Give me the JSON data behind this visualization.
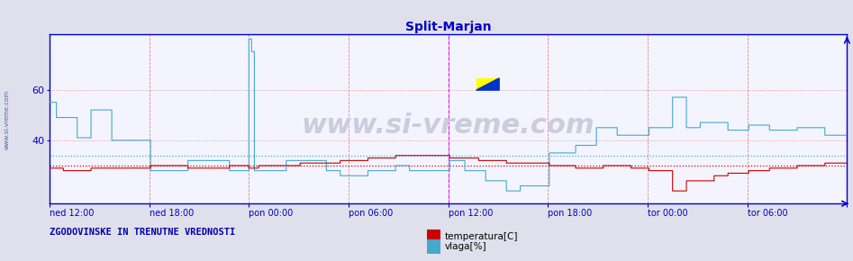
{
  "title": "Split-Marjan",
  "title_color": "#0000cc",
  "title_fontsize": 10,
  "bg_color": "#e0e0ec",
  "plot_bg_color": "#f4f4ff",
  "watermark": "www.si-vreme.com",
  "watermark_color": "#ccccdd",
  "watermark_fontsize": 22,
  "legend_label_temp": "temperatura[C]",
  "legend_label_hum": "vlaga[%]",
  "legend_color_temp": "#cc0000",
  "legend_color_hum": "#44aacc",
  "footer_text": "ZGODOVINSKE IN TRENUTNE VREDNOSTI",
  "footer_color": "#0000aa",
  "x_tick_labels": [
    "ned 12:00",
    "ned 18:00",
    "pon 00:00",
    "pon 06:00",
    "pon 12:00",
    "pon 18:00",
    "tor 00:00",
    "tor 06:00",
    ""
  ],
  "x_tick_positions": [
    0,
    72,
    144,
    216,
    288,
    360,
    432,
    504,
    576
  ],
  "ylim": [
    15,
    82
  ],
  "yticks": [
    40,
    60
  ],
  "temp_mean_line": 30.0,
  "hum_mean_line": 34.0,
  "temp_color": "#cc0000",
  "hum_color": "#44aacc",
  "spine_color": "#0000cc",
  "axis_color": "#0000cc",
  "vgrid_color": "#dd8888",
  "hgrid_color": "#dd8888",
  "magenta_vline1": 288,
  "magenta_vline2": 576,
  "n_points": 577,
  "side_label": "www.si-vreme.com",
  "side_label_color": "#4466aa"
}
